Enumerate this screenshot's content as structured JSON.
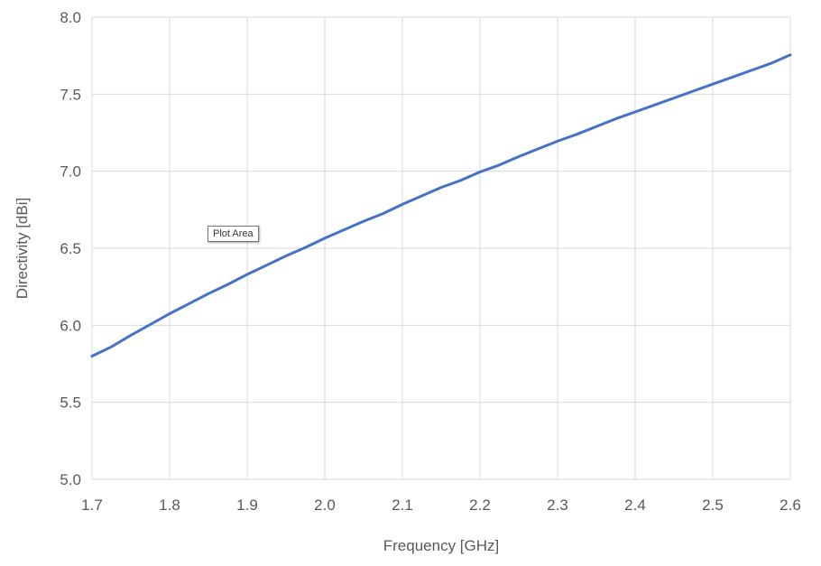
{
  "chart_data": {
    "type": "line",
    "title": "",
    "xlabel": "Frequency [GHz]",
    "ylabel": "Directivity [dBi]",
    "xlim": [
      1.7,
      2.6
    ],
    "ylim": [
      5.0,
      8.0
    ],
    "xticks": [
      "1.7",
      "1.8",
      "1.9",
      "2.0",
      "2.1",
      "2.2",
      "2.3",
      "2.4",
      "2.5",
      "2.6"
    ],
    "yticks": [
      "5.0",
      "5.5",
      "6.0",
      "6.5",
      "7.0",
      "7.5",
      "8.0"
    ],
    "grid": true,
    "legend": "none",
    "series": [
      {
        "color": "#4472c4",
        "x": [
          1.7,
          1.725,
          1.75,
          1.775,
          1.8,
          1.825,
          1.85,
          1.875,
          1.9,
          1.925,
          1.95,
          1.975,
          2.0,
          2.025,
          2.05,
          2.075,
          2.1,
          2.125,
          2.15,
          2.175,
          2.2,
          2.225,
          2.25,
          2.275,
          2.3,
          2.325,
          2.35,
          2.375,
          2.4,
          2.425,
          2.45,
          2.475,
          2.5,
          2.525,
          2.55,
          2.575,
          2.6
        ],
        "y": [
          5.8,
          5.86,
          5.935,
          6.005,
          6.075,
          6.14,
          6.205,
          6.265,
          6.33,
          6.39,
          6.45,
          6.505,
          6.565,
          6.62,
          6.675,
          6.725,
          6.785,
          6.84,
          6.895,
          6.94,
          6.995,
          7.04,
          7.095,
          7.145,
          7.195,
          7.24,
          7.29,
          7.34,
          7.385,
          7.43,
          7.475,
          7.52,
          7.565,
          7.61,
          7.655,
          7.7,
          7.755
        ]
      }
    ]
  },
  "tooltip": {
    "label": "Plot Area"
  }
}
